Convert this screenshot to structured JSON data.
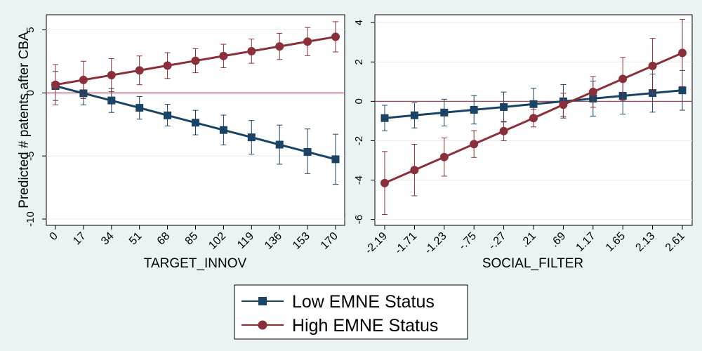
{
  "chart_data": [
    {
      "type": "line",
      "xlabel": "TARGET_INNOV",
      "ylabel": "Predicted # patents after CBA",
      "x": [
        0,
        17,
        34,
        51,
        68,
        85,
        102,
        119,
        136,
        153,
        170
      ],
      "x_tick_labels": [
        "0",
        "17",
        "34",
        "51",
        "68",
        "85",
        "102",
        "119",
        "136",
        "153",
        "170"
      ],
      "y_ticks": [
        5,
        0,
        -5,
        -10
      ],
      "y_tick_labels": [
        "5",
        "0",
        "-5",
        "-10"
      ],
      "ylim": [
        -10.5,
        6.2
      ],
      "reference_line_y": 0,
      "grid": true,
      "series": [
        {
          "name": "Low EMNE Status",
          "color": "#1a4466",
          "marker": "square",
          "values": [
            0.55,
            -0.03,
            -0.6,
            -1.18,
            -1.78,
            -2.36,
            -2.94,
            -3.52,
            -4.1,
            -4.68,
            -5.26
          ],
          "ci_low": [
            -0.6,
            -0.95,
            -1.55,
            -2.08,
            -2.62,
            -3.32,
            -4.12,
            -4.85,
            -5.65,
            -6.4,
            -7.25
          ],
          "ci_high": [
            1.7,
            0.9,
            0.35,
            -0.28,
            -0.9,
            -1.38,
            -1.76,
            -2.19,
            -2.55,
            -2.86,
            -3.27
          ]
        },
        {
          "name": "High EMNE Status",
          "color": "#8b2f3a",
          "marker": "circle",
          "values": [
            0.65,
            1.03,
            1.41,
            1.79,
            2.17,
            2.55,
            2.93,
            3.31,
            3.69,
            4.07,
            4.45
          ],
          "ci_low": [
            -0.95,
            -0.45,
            0.1,
            0.65,
            1.15,
            1.6,
            2.0,
            2.35,
            2.65,
            2.95,
            3.25
          ],
          "ci_high": [
            2.25,
            2.51,
            2.72,
            2.93,
            3.19,
            3.5,
            3.86,
            4.27,
            4.73,
            5.19,
            5.65
          ]
        }
      ]
    },
    {
      "type": "line",
      "xlabel": "SOCIAL_FILTER",
      "ylabel": "",
      "x": [
        -2.19,
        -1.71,
        -1.23,
        -0.75,
        -0.27,
        0.21,
        0.69,
        1.17,
        1.65,
        2.13,
        2.61
      ],
      "x_tick_labels": [
        "-2.19",
        "-1.71",
        "-1.23",
        "-.75",
        "-.27",
        ".21",
        ".69",
        "1.17",
        "1.65",
        "2.13",
        "2.61"
      ],
      "y_ticks": [
        4,
        2,
        0,
        -2,
        -4,
        -6
      ],
      "y_tick_labels": [
        "4",
        "2",
        "0",
        "-2",
        "-4",
        "-6"
      ],
      "ylim": [
        -6.3,
        4.4
      ],
      "reference_line_y": 0,
      "grid": true,
      "series": [
        {
          "name": "Low EMNE Status",
          "color": "#1a4466",
          "marker": "square",
          "values": [
            -0.85,
            -0.71,
            -0.57,
            -0.43,
            -0.29,
            -0.14,
            0.0,
            0.14,
            0.28,
            0.42,
            0.56
          ],
          "ci_low": [
            -1.5,
            -1.35,
            -1.25,
            -1.15,
            -1.05,
            -0.95,
            -0.85,
            -0.75,
            -0.65,
            -0.55,
            -0.45
          ],
          "ci_high": [
            -0.2,
            -0.07,
            0.11,
            0.29,
            0.47,
            0.67,
            0.85,
            1.03,
            1.21,
            1.39,
            1.57
          ]
        },
        {
          "name": "High EMNE Status",
          "color": "#8b2f3a",
          "marker": "circle",
          "values": [
            -4.15,
            -3.49,
            -2.83,
            -2.17,
            -1.51,
            -0.85,
            -0.17,
            0.48,
            1.14,
            1.8,
            2.46
          ],
          "ci_low": [
            -5.75,
            -4.8,
            -3.8,
            -2.85,
            -2.0,
            -1.3,
            -0.75,
            -0.3,
            0.05,
            0.4,
            0.75
          ],
          "ci_high": [
            -2.55,
            -2.18,
            -1.86,
            -1.49,
            -1.02,
            -0.4,
            0.41,
            1.26,
            2.23,
            3.2,
            4.17
          ]
        }
      ]
    }
  ],
  "legend": {
    "placement": "bottom",
    "entries": [
      {
        "label": "Low EMNE Status",
        "color": "#1a4466",
        "marker": "square"
      },
      {
        "label": "High EMNE Status",
        "color": "#8b2f3a",
        "marker": "circle"
      }
    ]
  }
}
